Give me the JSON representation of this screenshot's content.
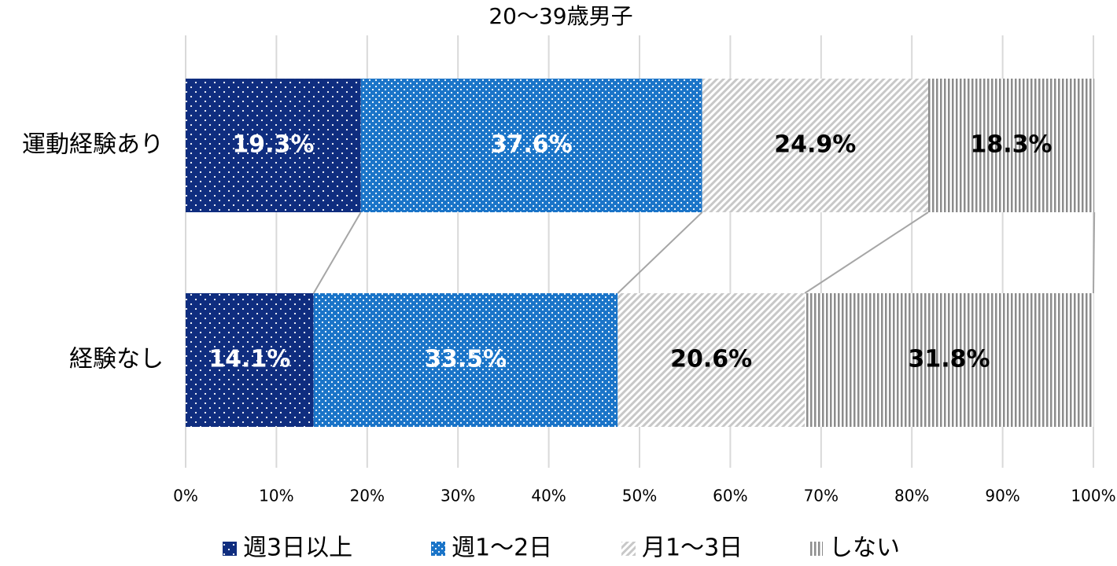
{
  "chart_data": {
    "type": "stacked-bar-horizontal",
    "title": "20～39歳男子",
    "categories": [
      "運動経験あり",
      "経験なし"
    ],
    "series": [
      {
        "name": "週3日以上",
        "color": "#0f2d7f",
        "pattern": "dots",
        "label_color": "#ffffff",
        "values": [
          19.3,
          14.1
        ],
        "value_labels": [
          "19.3%",
          "14.1%"
        ]
      },
      {
        "name": "週1～2日",
        "color": "#1a74c8",
        "pattern": "dense-dots",
        "label_color": "#ffffff",
        "values": [
          37.6,
          33.5
        ],
        "value_labels": [
          "37.6%",
          "33.5%"
        ]
      },
      {
        "name": "月1～3日",
        "color": "#c8c8c8",
        "pattern": "diagonal",
        "label_color": "#000000",
        "values": [
          24.9,
          20.6
        ],
        "value_labels": [
          "24.9%",
          "20.6%"
        ]
      },
      {
        "name": "しない",
        "color": "#8c8c8c",
        "pattern": "vertical",
        "label_color": "#000000",
        "values": [
          18.3,
          31.8
        ],
        "value_labels": [
          "18.3%",
          "31.8%"
        ]
      }
    ],
    "xlim": [
      0,
      100
    ],
    "xticks": [
      {
        "value": 0,
        "label": "0%"
      },
      {
        "value": 10,
        "label": "10%"
      },
      {
        "value": 20,
        "label": "20%"
      },
      {
        "value": 30,
        "label": "30%"
      },
      {
        "value": 40,
        "label": "40%"
      },
      {
        "value": 50,
        "label": "50%"
      },
      {
        "value": 60,
        "label": "60%"
      },
      {
        "value": 70,
        "label": "70%"
      },
      {
        "value": 80,
        "label": "80%"
      },
      {
        "value": 90,
        "label": "90%"
      },
      {
        "value": 100,
        "label": "100%"
      }
    ],
    "grid": true,
    "legend": "bottom"
  }
}
